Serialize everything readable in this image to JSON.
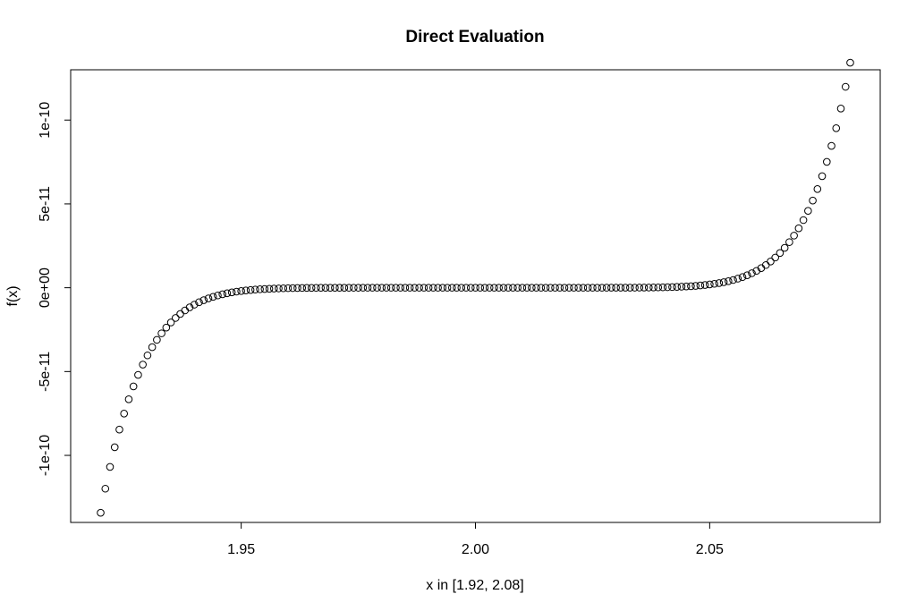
{
  "chart_data": {
    "type": "scatter",
    "title": "Direct Evaluation",
    "xlabel": "x in [1.92, 2.08]",
    "ylabel": "f(x)",
    "xlim": [
      1.92,
      2.08
    ],
    "ylim": [
      -1.3e-10,
      1.2e-10
    ],
    "x_ticks": [
      1.95,
      2.0,
      2.05
    ],
    "x_tick_labels": [
      "1.95",
      "2.00",
      "2.05"
    ],
    "y_ticks": [
      -1e-10,
      -5e-11,
      0,
      5e-11,
      1e-10
    ],
    "y_tick_labels": [
      "-1e-10",
      "-5e-11",
      "0e+00",
      "5e-11",
      "1e-10"
    ],
    "grid": false,
    "marker": "open-circle",
    "series": [
      {
        "function": "(x-2)^9",
        "x_start": 1.92,
        "x_end": 2.08,
        "n_points": 161
      }
    ]
  }
}
